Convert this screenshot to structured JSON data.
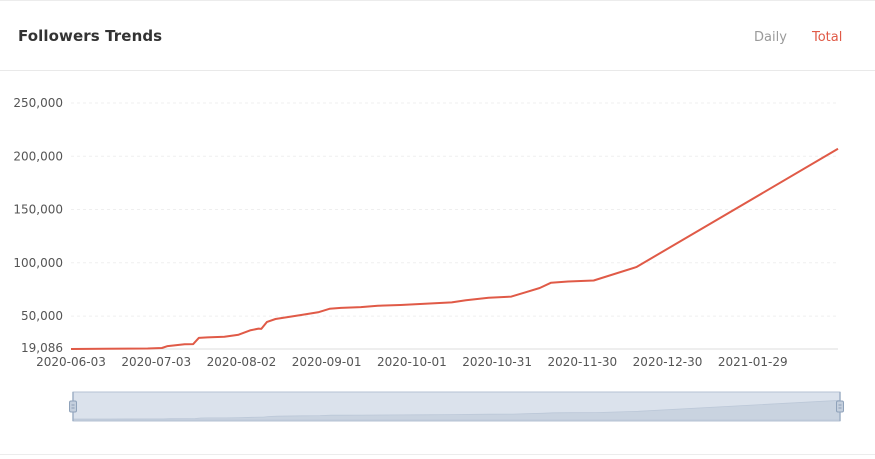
{
  "header": {
    "title": "Followers Trends",
    "tabs": [
      {
        "label": "Daily",
        "active": false
      },
      {
        "label": "Total",
        "active": true
      }
    ]
  },
  "colors": {
    "accent": "#e05a47",
    "tab_inactive": "#9a9a9a",
    "zoom_fill": "#dbe2ec",
    "zoom_border": "#b5c2d3"
  },
  "chart_data": {
    "type": "line",
    "xlabel": "",
    "ylabel": "",
    "grid": true,
    "legend": "none",
    "y_min_label": "19,086",
    "y_ticks": [
      "250,000",
      "200,000",
      "150,000",
      "100,000",
      "50,000"
    ],
    "y_tick_values": [
      250000,
      200000,
      150000,
      100000,
      50000
    ],
    "ylim": [
      19086,
      250000
    ],
    "x_tick_labels": [
      "2020-06-03",
      "2020-07-03",
      "2020-08-02",
      "2020-09-01",
      "2020-10-01",
      "2020-10-31",
      "2020-11-30",
      "2020-12-30",
      "2021-01-29"
    ],
    "xlim": [
      "2020-06-03",
      "2021-02-28"
    ],
    "series": [
      {
        "values": [
          [
            "2020-06-03",
            19086
          ],
          [
            "2020-06-15",
            19300
          ],
          [
            "2020-06-30",
            19600
          ],
          [
            "2020-07-05",
            20000
          ],
          [
            "2020-07-07",
            21800
          ],
          [
            "2020-07-13",
            23500
          ],
          [
            "2020-07-16",
            23700
          ],
          [
            "2020-07-18",
            29500
          ],
          [
            "2020-07-21",
            30000
          ],
          [
            "2020-07-27",
            30500
          ],
          [
            "2020-08-01",
            32500
          ],
          [
            "2020-08-05",
            36500
          ],
          [
            "2020-08-08",
            38200
          ],
          [
            "2020-08-09",
            38000
          ],
          [
            "2020-08-11",
            44500
          ],
          [
            "2020-08-14",
            47200
          ],
          [
            "2020-08-23",
            51000
          ],
          [
            "2020-08-29",
            53500
          ],
          [
            "2020-09-02",
            56800
          ],
          [
            "2020-09-06",
            57700
          ],
          [
            "2020-09-13",
            58400
          ],
          [
            "2020-09-19",
            59700
          ],
          [
            "2020-09-27",
            60400
          ],
          [
            "2020-10-03",
            61200
          ],
          [
            "2020-10-15",
            62800
          ],
          [
            "2020-10-20",
            64800
          ],
          [
            "2020-10-28",
            67200
          ],
          [
            "2020-11-05",
            68300
          ],
          [
            "2020-11-10",
            72300
          ],
          [
            "2020-11-15",
            76300
          ],
          [
            "2020-11-19",
            81300
          ],
          [
            "2020-11-25",
            82400
          ],
          [
            "2020-12-04",
            83400
          ],
          [
            "2020-12-19",
            96000
          ],
          [
            "2021-02-28",
            207000
          ]
        ]
      }
    ]
  }
}
